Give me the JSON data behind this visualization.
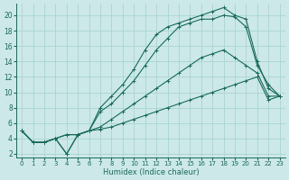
{
  "xlabel": "Humidex (Indice chaleur)",
  "xlim": [
    -0.5,
    23.5
  ],
  "ylim": [
    1.5,
    21.5
  ],
  "xticks": [
    0,
    1,
    2,
    3,
    4,
    5,
    6,
    7,
    8,
    9,
    10,
    11,
    12,
    13,
    14,
    15,
    16,
    17,
    18,
    19,
    20,
    21,
    22,
    23
  ],
  "yticks": [
    2,
    4,
    6,
    8,
    10,
    12,
    14,
    16,
    18,
    20
  ],
  "bg_color": "#cce8e8",
  "grid_color": "#aad4d4",
  "line_color": "#1a6b5a",
  "curves": [
    {
      "x": [
        0,
        1,
        2,
        3,
        4,
        5,
        6,
        7,
        8,
        9,
        10,
        11,
        12,
        13,
        14,
        15,
        16,
        17,
        18,
        19,
        20,
        21,
        22,
        23
      ],
      "y": [
        5.0,
        3.5,
        3.5,
        4.0,
        2.0,
        4.5,
        5.0,
        8.0,
        9.5,
        11.0,
        13.0,
        15.5,
        17.5,
        18.5,
        19.0,
        19.5,
        20.0,
        20.5,
        21.0,
        20.0,
        19.5,
        14.0,
        10.5,
        9.5
      ]
    },
    {
      "x": [
        0,
        1,
        2,
        3,
        4,
        5,
        6,
        7,
        8,
        9,
        10,
        11,
        12,
        13,
        14,
        15,
        16,
        17,
        18,
        19,
        20,
        21,
        22,
        23
      ],
      "y": [
        5.0,
        3.5,
        3.5,
        4.0,
        2.0,
        4.5,
        5.0,
        7.5,
        8.5,
        10.0,
        11.5,
        13.5,
        15.5,
        17.0,
        18.5,
        19.0,
        19.5,
        19.5,
        20.0,
        19.8,
        18.5,
        13.5,
        11.0,
        9.5
      ]
    },
    {
      "x": [
        0,
        1,
        2,
        3,
        4,
        5,
        6,
        7,
        8,
        9,
        10,
        11,
        12,
        13,
        14,
        15,
        16,
        17,
        18,
        19,
        20,
        21,
        22,
        23
      ],
      "y": [
        5.0,
        3.5,
        3.5,
        4.0,
        4.5,
        4.5,
        5.0,
        5.5,
        6.5,
        7.5,
        8.5,
        9.5,
        10.5,
        11.5,
        12.5,
        13.5,
        14.5,
        15.0,
        15.5,
        14.5,
        13.5,
        12.5,
        9.5,
        9.5
      ]
    },
    {
      "x": [
        0,
        1,
        2,
        3,
        4,
        5,
        6,
        7,
        8,
        9,
        10,
        11,
        12,
        13,
        14,
        15,
        16,
        17,
        18,
        19,
        20,
        21,
        22,
        23
      ],
      "y": [
        5.0,
        3.5,
        3.5,
        4.0,
        4.5,
        4.5,
        5.0,
        5.2,
        5.5,
        6.0,
        6.5,
        7.0,
        7.5,
        8.0,
        8.5,
        9.0,
        9.5,
        10.0,
        10.5,
        11.0,
        11.5,
        12.0,
        9.0,
        9.5
      ]
    }
  ]
}
